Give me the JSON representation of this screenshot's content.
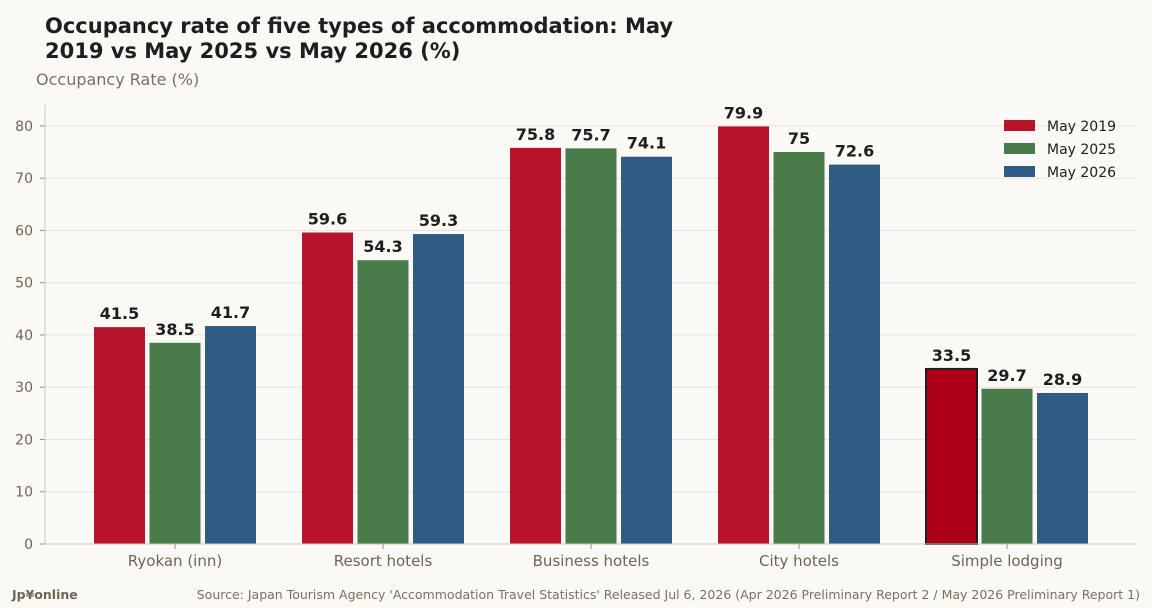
{
  "chart_data": {
    "type": "bar",
    "title_lines": [
      "Occupancy rate of five types of accommodation: May",
      "2019 vs May 2025 vs May 2026 (%)"
    ],
    "ylabel": "Occupancy Rate (%)",
    "xlabel": "",
    "ylim": [
      0,
      84
    ],
    "yticks": [
      0,
      10,
      20,
      30,
      40,
      50,
      60,
      70,
      80
    ],
    "grid": true,
    "legend_position": "top-right",
    "categories": [
      "Ryokan (inn)",
      "Resort hotels",
      "Business hotels",
      "City hotels",
      "Simple lodging"
    ],
    "series": [
      {
        "name": "May 2019",
        "color": "#b8142c",
        "values": [
          41.5,
          59.6,
          75.8,
          79.9,
          33.5
        ],
        "labels": [
          "41.5",
          "59.6",
          "75.8",
          "79.9",
          "33.5"
        ]
      },
      {
        "name": "May 2025",
        "color": "#4a7b4a",
        "values": [
          38.5,
          54.3,
          75.7,
          75,
          29.7
        ],
        "labels": [
          "38.5",
          "54.3",
          "75.7",
          "75",
          "29.7"
        ]
      },
      {
        "name": "May 2026",
        "color": "#2f5b84",
        "values": [
          41.7,
          59.3,
          74.1,
          72.6,
          28.9
        ],
        "labels": [
          "41.7",
          "59.3",
          "74.1",
          "72.6",
          "28.9"
        ]
      }
    ],
    "highlight": {
      "category": "Simple lodging",
      "series": "May 2019",
      "color": "#ad0016",
      "outline": "#1e1e1e"
    }
  },
  "footer": {
    "brand": "Jp¥online",
    "source": "Source: Japan Tourism Agency 'Accommodation Travel Statistics' Released Jul 6, 2026 (Apr 2026 Preliminary Report 2 / May 2026 Preliminary Report 1)"
  }
}
